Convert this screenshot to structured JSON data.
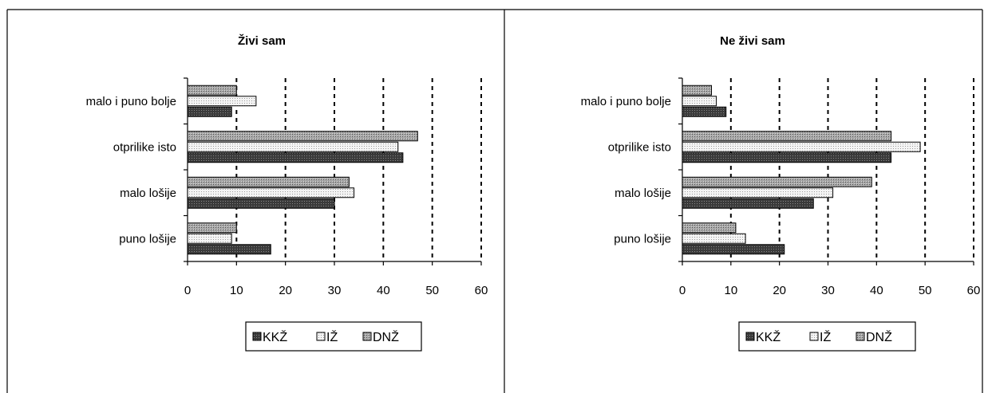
{
  "chart_data": [
    {
      "type": "bar",
      "orientation": "horizontal",
      "title": "Živi sam",
      "categories": [
        "malo i puno bolje",
        "otprilike isto",
        "malo lošije",
        "puno lošije"
      ],
      "series": [
        {
          "name": "KKŽ",
          "values": [
            9,
            44,
            30,
            17
          ],
          "pattern": "dark"
        },
        {
          "name": "IŽ",
          "values": [
            14,
            43,
            34,
            9
          ],
          "pattern": "light"
        },
        {
          "name": "DNŽ",
          "values": [
            10,
            47,
            33,
            10
          ],
          "pattern": "medium"
        }
      ],
      "xlim": [
        0,
        60
      ],
      "xticks": [
        0,
        10,
        20,
        30,
        40,
        50,
        60
      ],
      "grid": "vertical dashed",
      "legend": "bottom"
    },
    {
      "type": "bar",
      "orientation": "horizontal",
      "title": "Ne živi sam",
      "categories": [
        "malo i puno bolje",
        "otprilike isto",
        "malo lošije",
        "puno lošije"
      ],
      "series": [
        {
          "name": "KKŽ",
          "values": [
            9,
            43,
            27,
            21
          ],
          "pattern": "dark"
        },
        {
          "name": "IŽ",
          "values": [
            7,
            49,
            31,
            13
          ],
          "pattern": "light"
        },
        {
          "name": "DNŽ",
          "values": [
            6,
            43,
            39,
            11
          ],
          "pattern": "medium"
        }
      ],
      "xlim": [
        0,
        60
      ],
      "xticks": [
        0,
        10,
        20,
        30,
        40,
        50,
        60
      ],
      "grid": "vertical dashed",
      "legend": "bottom"
    }
  ],
  "colors": {
    "border": "#000000",
    "dark_fill": "#3a3a3a",
    "medium_fill": "#a0a0a0",
    "light_fill": "#f2f2f2"
  }
}
